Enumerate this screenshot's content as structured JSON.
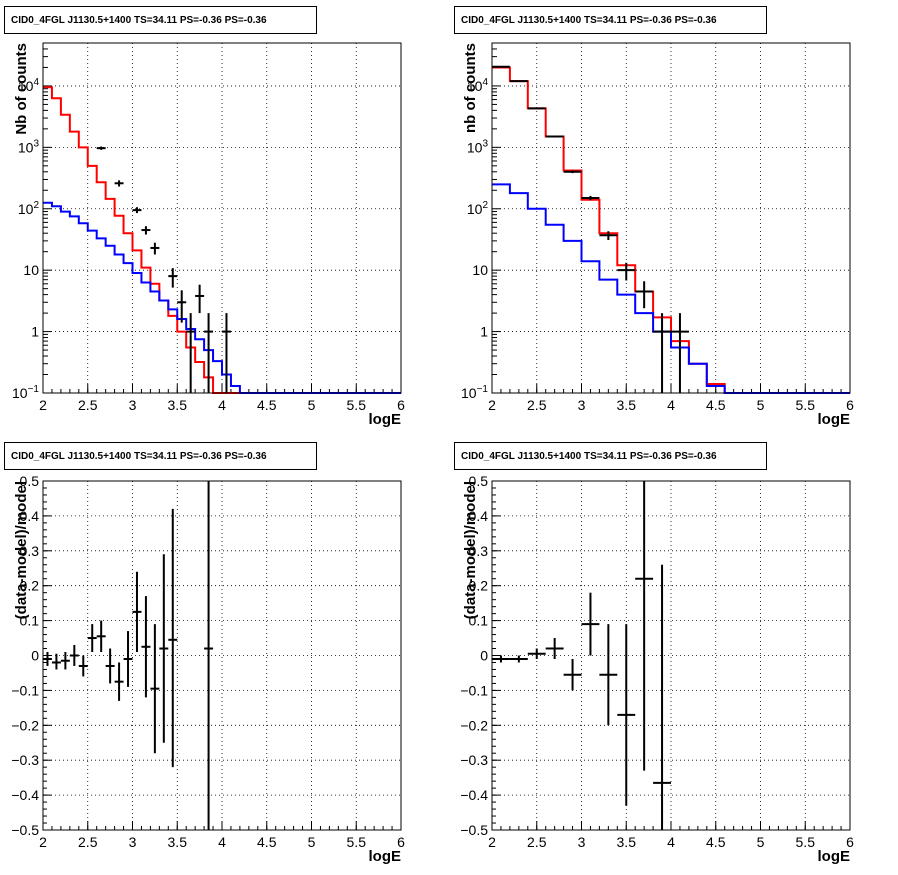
{
  "chart_data": [
    {
      "type": "histogram",
      "title": "CID0_4FGL J1130.5+1400 TS=34.11 PS=-0.36 PS=-0.36",
      "xlabel": "logE",
      "ylabel": "Nb of counts",
      "xlim": [
        2,
        6
      ],
      "ylim": [
        0.1,
        50000
      ],
      "yscale": "log",
      "grid": true,
      "x_ticks": [
        "2",
        "2.5",
        "3",
        "3.5",
        "4",
        "4.5",
        "5",
        "5.5",
        "6"
      ],
      "y_ticks": [
        {
          "value": 0.1,
          "label": "10",
          "exp": "−1"
        },
        {
          "value": 1,
          "label": "1",
          "exp": ""
        },
        {
          "value": 10,
          "label": "10",
          "exp": ""
        },
        {
          "value": 100,
          "label": "10",
          "exp": "2"
        },
        {
          "value": 1000,
          "label": "10",
          "exp": "3"
        },
        {
          "value": 10000,
          "label": "10",
          "exp": "4"
        }
      ],
      "bin_edges": [
        2.0,
        2.1,
        2.2,
        2.3,
        2.4,
        2.5,
        2.6,
        2.7,
        2.8,
        2.9,
        3.0,
        3.1,
        3.2,
        3.3,
        3.4,
        3.5,
        3.6,
        3.7,
        3.8,
        3.9,
        4.0,
        4.1,
        4.2,
        4.3,
        4.4,
        4.5,
        4.6,
        4.7,
        4.8,
        4.9,
        5.0,
        5.1,
        5.2,
        5.3,
        5.4,
        5.5,
        5.6,
        5.7,
        5.8,
        5.9,
        6.0
      ],
      "series": [
        {
          "name": "",
          "color": "#ff0000",
          "style": "step",
          "values": [
            9500,
            6300,
            3400,
            1800,
            1000,
            500,
            270,
            145,
            77,
            40,
            21,
            11,
            6,
            3.2,
            1.8,
            1.0,
            0.55,
            0.32,
            0.18,
            0.1,
            0.1,
            0.1,
            0.1,
            0.1,
            0.1,
            0.1,
            0.1,
            0.1,
            0.1,
            0.1,
            0.1,
            0.1,
            0.1,
            0.1,
            0.1,
            0.1,
            0.1,
            0.1,
            0.1,
            0.1
          ]
        },
        {
          "name": "",
          "color": "#0000ff",
          "style": "step",
          "values": [
            125,
            110,
            90,
            75,
            58,
            44,
            33,
            25,
            18,
            13,
            9,
            6.3,
            4.5,
            3.2,
            2.3,
            1.6,
            1.1,
            0.75,
            0.5,
            0.33,
            0.2,
            0.13,
            0.1,
            0.1,
            0.1,
            0.1,
            0.1,
            0.1,
            0.1,
            0.1,
            0.1,
            0.1,
            0.1,
            0.1,
            0.1,
            0.1,
            0.1,
            0.1,
            0.1,
            0.1
          ]
        },
        {
          "name": "",
          "color": "#000000",
          "style": "points",
          "points": [
            {
              "x": 2.65,
              "y": 970,
              "xerr": 0.05,
              "ylo": 910,
              "yhi": 1030
            },
            {
              "x": 2.85,
              "y": 260,
              "xerr": 0.05,
              "ylo": 230,
              "yhi": 290
            },
            {
              "x": 3.05,
              "y": 95,
              "xerr": 0.05,
              "ylo": 85,
              "yhi": 106
            },
            {
              "x": 3.15,
              "y": 45,
              "xerr": 0.05,
              "ylo": 38,
              "yhi": 52
            },
            {
              "x": 3.25,
              "y": 23,
              "xerr": 0.05,
              "ylo": 18,
              "yhi": 28
            },
            {
              "x": 3.45,
              "y": 8,
              "xerr": 0.05,
              "ylo": 5.2,
              "yhi": 10.8
            },
            {
              "x": 3.55,
              "y": 3,
              "xerr": 0.05,
              "ylo": 1.4,
              "yhi": 4.7
            },
            {
              "x": 3.65,
              "y": 1,
              "xerr": 0.05,
              "ylo": 0.1,
              "yhi": 2
            },
            {
              "x": 3.75,
              "y": 3.8,
              "xerr": 0.05,
              "ylo": 2,
              "yhi": 5.8
            },
            {
              "x": 3.85,
              "y": 1,
              "xerr": 0.05,
              "ylo": 0.1,
              "yhi": 2
            },
            {
              "x": 4.05,
              "y": 1,
              "xerr": 0.05,
              "ylo": 0.1,
              "yhi": 2
            }
          ]
        }
      ]
    },
    {
      "type": "histogram",
      "title": "CID0_4FGL J1130.5+1400 TS=34.11 PS=-0.36 PS=-0.36",
      "xlabel": "logE",
      "ylabel": "nb of counts",
      "xlim": [
        2,
        6
      ],
      "ylim": [
        0.1,
        50000
      ],
      "yscale": "log",
      "grid": true,
      "x_ticks": [
        "2",
        "2.5",
        "3",
        "3.5",
        "4",
        "4.5",
        "5",
        "5.5",
        "6"
      ],
      "y_ticks": [
        {
          "value": 0.1,
          "label": "10",
          "exp": "−1"
        },
        {
          "value": 1,
          "label": "1",
          "exp": ""
        },
        {
          "value": 10,
          "label": "10",
          "exp": ""
        },
        {
          "value": 100,
          "label": "10",
          "exp": "2"
        },
        {
          "value": 1000,
          "label": "10",
          "exp": "3"
        },
        {
          "value": 10000,
          "label": "10",
          "exp": "4"
        }
      ],
      "bin_edges": [
        2.0,
        2.2,
        2.4,
        2.6,
        2.8,
        3.0,
        3.2,
        3.4,
        3.6,
        3.8,
        4.0,
        4.2,
        4.4,
        4.6,
        4.8,
        5.0,
        5.2,
        5.4,
        5.6,
        5.8,
        6.0
      ],
      "series": [
        {
          "name": "",
          "color": "#ff0000",
          "style": "step",
          "values": [
            20000,
            12000,
            4300,
            1500,
            420,
            140,
            40,
            12,
            4.5,
            1.7,
            0.7,
            0.3,
            0.14,
            0.1,
            0.1,
            0.1,
            0.1,
            0.1,
            0.1,
            0.1
          ]
        },
        {
          "name": "",
          "color": "#0000ff",
          "style": "step",
          "values": [
            250,
            180,
            100,
            55,
            30,
            14,
            7,
            4,
            2,
            1,
            0.55,
            0.3,
            0.13,
            0.1,
            0.1,
            0.1,
            0.1,
            0.1,
            0.1,
            0.1
          ]
        },
        {
          "name": "",
          "color": "#000000",
          "style": "points",
          "points": [
            {
              "x": 2.1,
              "y": 20500,
              "xerr": 0.1,
              "ylo": 20200,
              "yhi": 20800
            },
            {
              "x": 2.3,
              "y": 12000,
              "xerr": 0.1,
              "ylo": 11800,
              "yhi": 12200
            },
            {
              "x": 2.5,
              "y": 4300,
              "xerr": 0.1,
              "ylo": 4200,
              "yhi": 4400
            },
            {
              "x": 2.7,
              "y": 1500,
              "xerr": 0.1,
              "ylo": 1450,
              "yhi": 1550
            },
            {
              "x": 2.9,
              "y": 400,
              "xerr": 0.1,
              "ylo": 380,
              "yhi": 420
            },
            {
              "x": 3.1,
              "y": 150,
              "xerr": 0.1,
              "ylo": 138,
              "yhi": 162
            },
            {
              "x": 3.3,
              "y": 37,
              "xerr": 0.1,
              "ylo": 31,
              "yhi": 43
            },
            {
              "x": 3.5,
              "y": 10,
              "xerr": 0.1,
              "ylo": 6.8,
              "yhi": 13.2
            },
            {
              "x": 3.7,
              "y": 4.5,
              "xerr": 0.1,
              "ylo": 2.4,
              "yhi": 6.6
            },
            {
              "x": 3.9,
              "y": 1,
              "xerr": 0.1,
              "ylo": 0.1,
              "yhi": 2
            },
            {
              "x": 4.1,
              "y": 1,
              "xerr": 0.1,
              "ylo": 0.1,
              "yhi": 2
            }
          ]
        }
      ]
    },
    {
      "type": "scatter",
      "title": "CID0_4FGL J1130.5+1400 TS=34.11 PS=-0.36 PS=-0.36",
      "xlabel": "logE",
      "ylabel": "(data-model)/model",
      "xlim": [
        2,
        6
      ],
      "ylim": [
        -0.5,
        0.5
      ],
      "grid": true,
      "x_ticks": [
        "2",
        "2.5",
        "3",
        "3.5",
        "4",
        "4.5",
        "5",
        "5.5",
        "6"
      ],
      "y_ticks": [
        "−0.5",
        "−0.4",
        "−0.3",
        "−0.2",
        "−0.1",
        "0",
        "0.1",
        "0.2",
        "0.3",
        "0.4",
        "0.5"
      ],
      "series": [
        {
          "name": "",
          "color": "#000000",
          "style": "points",
          "points": [
            {
              "x": 2.05,
              "y": -0.01,
              "xerr": 0.05,
              "ylo": -0.03,
              "yhi": 0.01
            },
            {
              "x": 2.15,
              "y": -0.02,
              "xerr": 0.05,
              "ylo": -0.04,
              "yhi": 0.005
            },
            {
              "x": 2.25,
              "y": -0.015,
              "xerr": 0.05,
              "ylo": -0.04,
              "yhi": 0.01
            },
            {
              "x": 2.35,
              "y": 0.0,
              "xerr": 0.05,
              "ylo": -0.03,
              "yhi": 0.03
            },
            {
              "x": 2.45,
              "y": -0.03,
              "xerr": 0.05,
              "ylo": -0.06,
              "yhi": 0.0
            },
            {
              "x": 2.55,
              "y": 0.05,
              "xerr": 0.05,
              "ylo": 0.01,
              "yhi": 0.09
            },
            {
              "x": 2.65,
              "y": 0.055,
              "xerr": 0.05,
              "ylo": 0.01,
              "yhi": 0.1
            },
            {
              "x": 2.75,
              "y": -0.03,
              "xerr": 0.05,
              "ylo": -0.08,
              "yhi": 0.02
            },
            {
              "x": 2.85,
              "y": -0.075,
              "xerr": 0.05,
              "ylo": -0.13,
              "yhi": -0.02
            },
            {
              "x": 2.95,
              "y": -0.01,
              "xerr": 0.05,
              "ylo": -0.09,
              "yhi": 0.07
            },
            {
              "x": 3.05,
              "y": 0.125,
              "xerr": 0.05,
              "ylo": 0.01,
              "yhi": 0.24
            },
            {
              "x": 3.15,
              "y": 0.025,
              "xerr": 0.05,
              "ylo": -0.12,
              "yhi": 0.17
            },
            {
              "x": 3.25,
              "y": -0.095,
              "xerr": 0.05,
              "ylo": -0.28,
              "yhi": 0.09
            },
            {
              "x": 3.35,
              "y": 0.02,
              "xerr": 0.05,
              "ylo": -0.25,
              "yhi": 0.29
            },
            {
              "x": 3.45,
              "y": 0.045,
              "xerr": 0.05,
              "ylo": -0.32,
              "yhi": 0.42
            },
            {
              "x": 3.85,
              "y": 0.02,
              "xerr": 0.05,
              "ylo": -0.5,
              "yhi": 0.5
            }
          ]
        }
      ]
    },
    {
      "type": "scatter",
      "title": "CID0_4FGL J1130.5+1400 TS=34.11 PS=-0.36 PS=-0.36",
      "xlabel": "logE",
      "ylabel": "(data-model)/model",
      "xlim": [
        2,
        6
      ],
      "ylim": [
        -0.5,
        0.5
      ],
      "grid": true,
      "x_ticks": [
        "2",
        "2.5",
        "3",
        "3.5",
        "4",
        "4.5",
        "5",
        "5.5",
        "6"
      ],
      "y_ticks": [
        "−0.5",
        "−0.4",
        "−0.3",
        "−0.2",
        "−0.1",
        "0",
        "0.1",
        "0.2",
        "0.3",
        "0.4",
        "0.5"
      ],
      "series": [
        {
          "name": "",
          "color": "#000000",
          "style": "points",
          "points": [
            {
              "x": 2.1,
              "y": -0.01,
              "xerr": 0.1,
              "ylo": -0.02,
              "yhi": 0.0
            },
            {
              "x": 2.3,
              "y": -0.01,
              "xerr": 0.1,
              "ylo": -0.02,
              "yhi": 0.0
            },
            {
              "x": 2.5,
              "y": 0.005,
              "xerr": 0.1,
              "ylo": -0.01,
              "yhi": 0.02
            },
            {
              "x": 2.7,
              "y": 0.02,
              "xerr": 0.1,
              "ylo": -0.01,
              "yhi": 0.05
            },
            {
              "x": 2.9,
              "y": -0.055,
              "xerr": 0.1,
              "ylo": -0.1,
              "yhi": -0.01
            },
            {
              "x": 3.1,
              "y": 0.09,
              "xerr": 0.1,
              "ylo": 0.0,
              "yhi": 0.18
            },
            {
              "x": 3.3,
              "y": -0.055,
              "xerr": 0.1,
              "ylo": -0.2,
              "yhi": 0.09
            },
            {
              "x": 3.5,
              "y": -0.17,
              "xerr": 0.1,
              "ylo": -0.43,
              "yhi": 0.09
            },
            {
              "x": 3.7,
              "y": 0.22,
              "xerr": 0.1,
              "ylo": -0.33,
              "yhi": 0.5
            },
            {
              "x": 3.9,
              "y": -0.365,
              "xerr": 0.1,
              "ylo": -0.5,
              "yhi": 0.26
            }
          ]
        }
      ]
    }
  ]
}
